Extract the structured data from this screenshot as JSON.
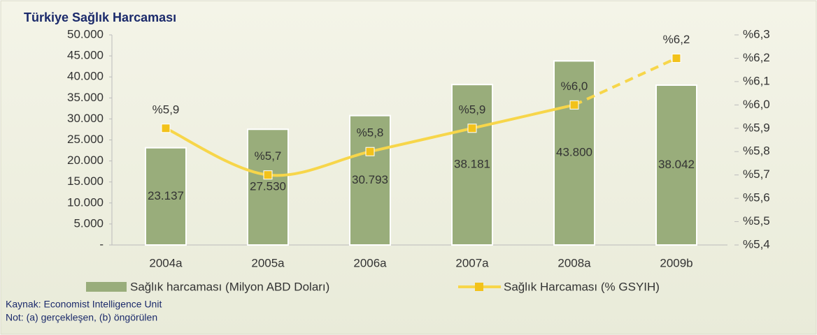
{
  "chart_data": {
    "type": "bar_line",
    "title": "Türkiye Sağlık Harcaması",
    "categories": [
      "2004a",
      "2005a",
      "2006a",
      "2007a",
      "2008a",
      "2009b"
    ],
    "series": [
      {
        "name": "Sağlık harcaması (Milyon ABD Doları)",
        "type": "bar",
        "color": "#99ad7b",
        "values": [
          23137,
          27530,
          30793,
          38181,
          43800,
          38042
        ],
        "value_labels": [
          "23.137",
          "27.530",
          "30.793",
          "38.181",
          "43.800",
          "38.042"
        ]
      },
      {
        "name": "Sağlık Harcaması (% GSYIH)",
        "type": "line",
        "axis": "y2",
        "color": "#f7d64a",
        "marker_color": "#f2c21b",
        "values": [
          5.9,
          5.7,
          5.8,
          5.9,
          6.0,
          6.2
        ],
        "value_labels": [
          "%5,9",
          "%5,7",
          "%5,8",
          "%5,9",
          "%6,0",
          "%6,2"
        ],
        "dashed_from": 4
      }
    ],
    "ylim": [
      0,
      50000
    ],
    "yticks": [
      {
        "value": 0,
        "label": "-"
      },
      {
        "value": 5000,
        "label": "5.000"
      },
      {
        "value": 10000,
        "label": "10.000"
      },
      {
        "value": 15000,
        "label": "15.000"
      },
      {
        "value": 20000,
        "label": "20.000"
      },
      {
        "value": 25000,
        "label": "25.000"
      },
      {
        "value": 30000,
        "label": "30.000"
      },
      {
        "value": 35000,
        "label": "35.000"
      },
      {
        "value": 40000,
        "label": "40.000"
      },
      {
        "value": 45000,
        "label": "45.000"
      },
      {
        "value": 50000,
        "label": "50.000"
      }
    ],
    "y2lim": [
      5.4,
      6.3
    ],
    "y2ticks": [
      {
        "value": 5.4,
        "label": "%5,4"
      },
      {
        "value": 5.5,
        "label": "%5,5"
      },
      {
        "value": 5.6,
        "label": "%5,6"
      },
      {
        "value": 5.7,
        "label": "%5,7"
      },
      {
        "value": 5.8,
        "label": "%5,8"
      },
      {
        "value": 5.9,
        "label": "%5,9"
      },
      {
        "value": 6.0,
        "label": "%6,0"
      },
      {
        "value": 6.1,
        "label": "%6,1"
      },
      {
        "value": 6.2,
        "label": "%6,2"
      },
      {
        "value": 6.3,
        "label": "%6,3"
      }
    ],
    "legend": "bottom",
    "notes": [
      "Kaynak: Economist Intelligence Unit",
      "Not: (a) gerçekleşen, (b) öngörülen"
    ]
  }
}
